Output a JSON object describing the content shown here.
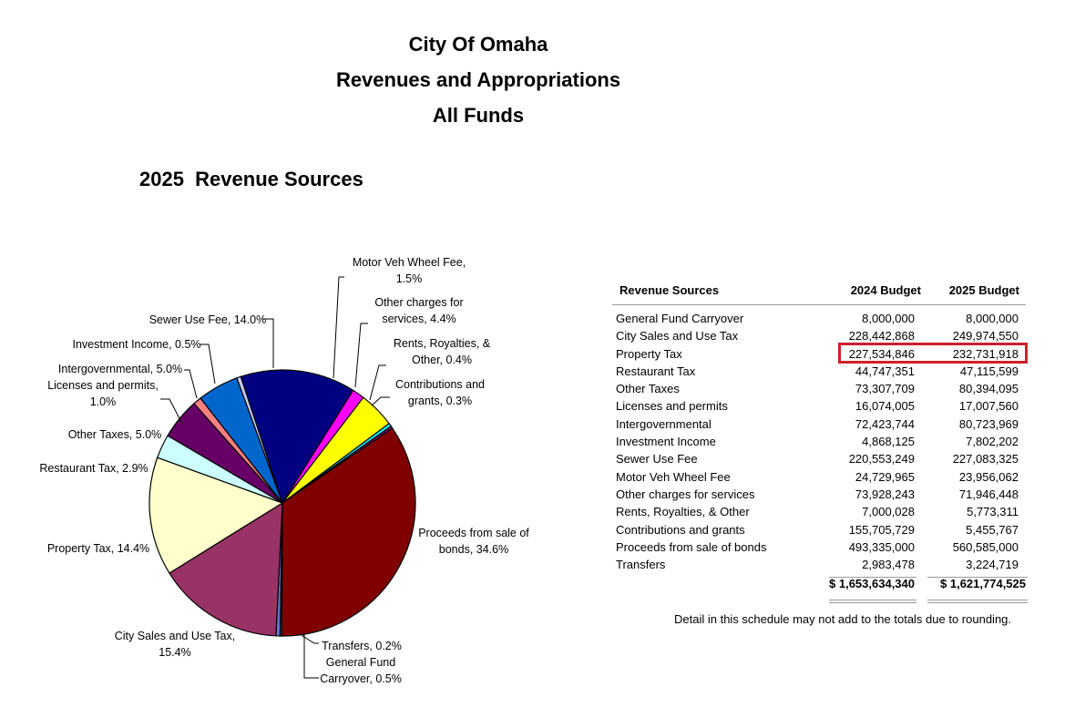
{
  "header": {
    "line1": "City Of Omaha",
    "line2": "Revenues and Appropriations",
    "line3": "All Funds",
    "subtitle": "2025  Revenue Sources"
  },
  "chart_data": {
    "type": "pie",
    "title": "2025  Revenue Sources",
    "slices": [
      {
        "label": [
          "General Fund",
          "Carryover, 0.5%"
        ],
        "value": 0.5,
        "color": "#6677cc"
      },
      {
        "label": [
          "City Sales and Use Tax,",
          "15.4%"
        ],
        "value": 15.4,
        "color": "#993366"
      },
      {
        "label": [
          "Property Tax, 14.4%"
        ],
        "value": 14.4,
        "color": "#ffffcc"
      },
      {
        "label": [
          "Restaurant Tax, 2.9%"
        ],
        "value": 2.9,
        "color": "#ccffff"
      },
      {
        "label": [
          "Other Taxes, 5.0%"
        ],
        "value": 5.0,
        "color": "#660066"
      },
      {
        "label": [
          "Licenses and permits,",
          "1.0%"
        ],
        "value": 1.0,
        "color": "#ff8080"
      },
      {
        "label": [
          "Intergovernmental, 5.0%"
        ],
        "value": 5.0,
        "color": "#0066cc"
      },
      {
        "label": [
          "Investment Income, 0.5%"
        ],
        "value": 0.5,
        "color": "#ccccff"
      },
      {
        "label": [
          "Sewer Use Fee, 14.0%"
        ],
        "value": 14.0,
        "color": "#000080"
      },
      {
        "label": [
          "Motor Veh Wheel Fee,",
          "1.5%"
        ],
        "value": 1.5,
        "color": "#ff00ff"
      },
      {
        "label": [
          "Other charges for",
          "services, 4.4%"
        ],
        "value": 4.4,
        "color": "#ffff00"
      },
      {
        "label": [
          "Rents, Royalties, &",
          "Other, 0.4%"
        ],
        "value": 0.4,
        "color": "#00ffff"
      },
      {
        "label": [
          "Contributions and",
          "grants, 0.3%"
        ],
        "value": 0.3,
        "color": "#800080"
      },
      {
        "label": [
          "Proceeds from sale of",
          "bonds, 34.6%"
        ],
        "value": 34.6,
        "color": "#800000"
      },
      {
        "label": [
          "Transfers, 0.2%"
        ],
        "value": 0.2,
        "color": "#008080"
      }
    ]
  },
  "table": {
    "headers": {
      "name": "Revenue Sources",
      "y2024": "2024 Budget",
      "y2025": "2025 Budget"
    },
    "rows": [
      {
        "name": "General Fund Carryover",
        "y2024": "8,000,000",
        "y2025": "8,000,000"
      },
      {
        "name": "City Sales and Use Tax",
        "y2024": "228,442,868",
        "y2025": "249,974,550"
      },
      {
        "name": "Property Tax",
        "y2024": "227,534,846",
        "y2025": "232,731,918"
      },
      {
        "name": "Restaurant Tax",
        "y2024": "44,747,351",
        "y2025": "47,115,599"
      },
      {
        "name": "Other Taxes",
        "y2024": "73,307,709",
        "y2025": "80,394,095"
      },
      {
        "name": "Licenses and permits",
        "y2024": "16,074,005",
        "y2025": "17,007,560"
      },
      {
        "name": "Intergovernmental",
        "y2024": "72,423,744",
        "y2025": "80,723,969"
      },
      {
        "name": "Investment Income",
        "y2024": "4,868,125",
        "y2025": "7,802,202"
      },
      {
        "name": "Sewer Use Fee",
        "y2024": "220,553,249",
        "y2025": "227,083,325"
      },
      {
        "name": "Motor Veh Wheel Fee",
        "y2024": "24,729,965",
        "y2025": "23,956,062"
      },
      {
        "name": "Other charges for services",
        "y2024": "73,928,243",
        "y2025": "71,946,448"
      },
      {
        "name": "Rents, Royalties, & Other",
        "y2024": "7,000,028",
        "y2025": "5,773,311"
      },
      {
        "name": "Contributions and grants",
        "y2024": "155,705,729",
        "y2025": "5,455,767"
      },
      {
        "name": "Proceeds from sale of bonds",
        "y2024": "493,335,000",
        "y2025": "560,585,000"
      },
      {
        "name": "Transfers",
        "y2024": "2,983,478",
        "y2025": "3,224,719"
      }
    ],
    "total": {
      "y2024": "$ 1,653,634,340",
      "y2025": "$ 1,621,774,525"
    },
    "highlight_color": "#d0202a"
  },
  "footnote": "Detail in this schedule may not add to the totals due to rounding."
}
